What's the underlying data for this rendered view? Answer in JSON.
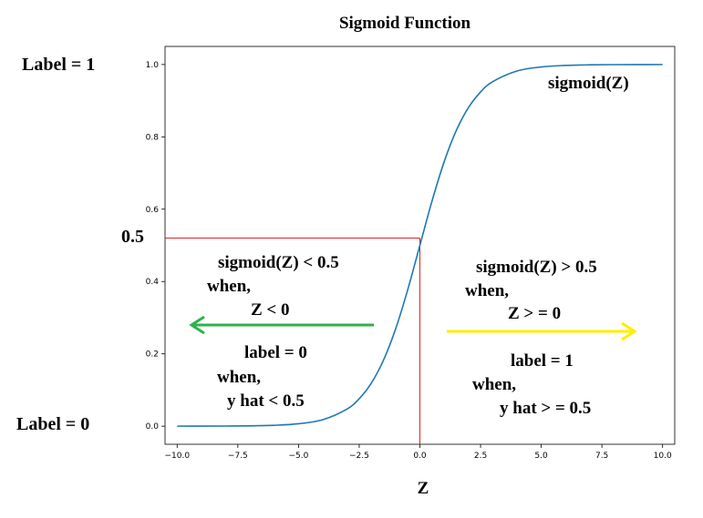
{
  "chart_data": {
    "type": "line",
    "title": "Sigmoid Function",
    "xlabel": "Z",
    "ylabel": "",
    "xlim": [
      -10.5,
      10.5
    ],
    "ylim": [
      -0.05,
      1.05
    ],
    "xticks": [
      -10.0,
      -7.5,
      -5.0,
      -2.5,
      0.0,
      2.5,
      5.0,
      7.5,
      10.0
    ],
    "xtick_labels": [
      "−10.0",
      "−7.5",
      "−5.0",
      "−2.5",
      "0.0",
      "2.5",
      "5.0",
      "7.5",
      "10.0"
    ],
    "yticks": [
      0.0,
      0.2,
      0.4,
      0.6,
      0.8,
      1.0
    ],
    "ytick_labels": [
      "0.0",
      "0.2",
      "0.4",
      "0.6",
      "0.8",
      "1.0"
    ],
    "grid": false,
    "series": [
      {
        "name": "sigmoid(Z)",
        "color": "#1f77b4",
        "x": [
          -10,
          -9,
          -8,
          -7,
          -6,
          -5,
          -4,
          -3,
          -2.5,
          -2,
          -1.5,
          -1,
          -0.5,
          0,
          0.5,
          1,
          1.5,
          2,
          2.5,
          3,
          4,
          5,
          6,
          7,
          8,
          9,
          10
        ],
        "y": [
          4.54e-05,
          0.000123,
          0.000335,
          0.000911,
          0.00247,
          0.00669,
          0.018,
          0.0474,
          0.0759,
          0.1192,
          0.1824,
          0.2689,
          0.3775,
          0.5,
          0.6225,
          0.7311,
          0.8176,
          0.8808,
          0.9241,
          0.9526,
          0.982,
          0.9933,
          0.9975,
          0.9991,
          0.99966,
          0.99988,
          0.99995
        ]
      }
    ],
    "threshold": {
      "x": 0.0,
      "y": 0.52,
      "color": "#d62728"
    }
  },
  "annotations": {
    "label_one": "Label  =  1",
    "label_zero": "Label  =  0",
    "half_mark": "0.5",
    "curve_label": "sigmoid(Z)",
    "left_block": {
      "line1": "sigmoid(Z)  < 0.5",
      "line2": "when,",
      "line3": "Z  <  0",
      "line4": "label  =  0",
      "line5": "when,",
      "line6": "y  hat  <  0.5"
    },
    "right_block": {
      "line1": "sigmoid(Z)  >  0.5",
      "line2": "when,",
      "line3": "Z  > = 0",
      "line4": "label  =  1",
      "line5": "when,",
      "line6": "y  hat > = 0.5"
    },
    "colors": {
      "left_arrow": "#2db34a",
      "right_arrow": "#ffee00"
    }
  }
}
